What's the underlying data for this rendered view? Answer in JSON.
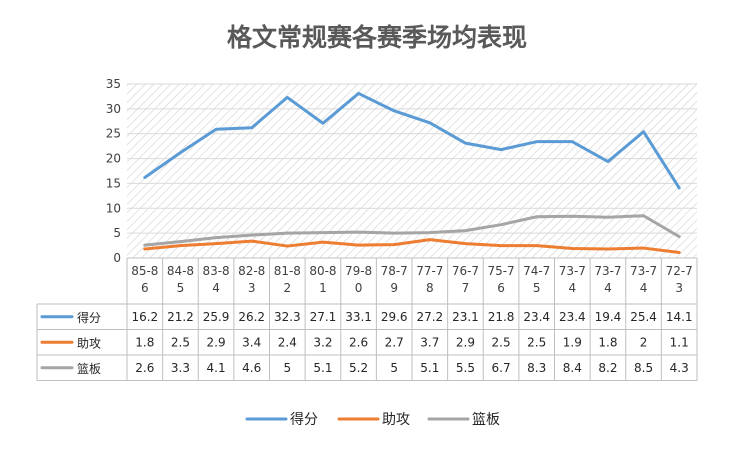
{
  "chart_data": {
    "type": "line",
    "title": "格文常规赛各赛季场均表现",
    "categories": [
      "85-86",
      "84-85",
      "83-84",
      "82-83",
      "81-82",
      "80-81",
      "79-80",
      "78-79",
      "77-78",
      "76-77",
      "75-76",
      "74-75",
      "73-74",
      "73-74",
      "73-74",
      "72-73"
    ],
    "category_lines": [
      [
        "85-8",
        "6"
      ],
      [
        "84-8",
        "5"
      ],
      [
        "83-8",
        "4"
      ],
      [
        "82-8",
        "3"
      ],
      [
        "81-8",
        "2"
      ],
      [
        "80-8",
        "1"
      ],
      [
        "79-8",
        "0"
      ],
      [
        "78-7",
        "9"
      ],
      [
        "77-7",
        "8"
      ],
      [
        "76-7",
        "7"
      ],
      [
        "75-7",
        "6"
      ],
      [
        "74-7",
        "5"
      ],
      [
        "73-7",
        "4"
      ],
      [
        "73-7",
        "4"
      ],
      [
        "73-7",
        "4"
      ],
      [
        "72-7",
        "3"
      ]
    ],
    "ylim": [
      0,
      35
    ],
    "yticks": [
      "0",
      "5",
      "10",
      "15",
      "20",
      "25",
      "30",
      "35"
    ],
    "grid": "diagonal hatch plot background",
    "legend_position": "bottom",
    "data_table": true,
    "series": [
      {
        "name": "得分",
        "color": "#5b9bd5",
        "values": [
          16.2,
          21.2,
          25.9,
          26.2,
          32.3,
          27.1,
          33.1,
          29.6,
          27.2,
          23.1,
          21.8,
          23.4,
          23.4,
          19.4,
          25.4,
          14.1
        ],
        "labels": [
          "16.2",
          "21.2",
          "25.9",
          "26.2",
          "32.3",
          "27.1",
          "33.1",
          "29.6",
          "27.2",
          "23.1",
          "21.8",
          "23.4",
          "23.4",
          "19.4",
          "25.4",
          "14.1"
        ]
      },
      {
        "name": "助攻",
        "color": "#ed7d31",
        "values": [
          1.8,
          2.5,
          2.9,
          3.4,
          2.4,
          3.2,
          2.6,
          2.7,
          3.7,
          2.9,
          2.5,
          2.5,
          1.9,
          1.8,
          2,
          1.1
        ],
        "labels": [
          "1.8",
          "2.5",
          "2.9",
          "3.4",
          "2.4",
          "3.2",
          "2.6",
          "2.7",
          "3.7",
          "2.9",
          "2.5",
          "2.5",
          "1.9",
          "1.8",
          "2",
          "1.1"
        ]
      },
      {
        "name": "篮板",
        "color": "#a5a5a5",
        "values": [
          2.6,
          3.3,
          4.1,
          4.6,
          5,
          5.1,
          5.2,
          5,
          5.1,
          5.5,
          6.7,
          8.3,
          8.4,
          8.2,
          8.5,
          4.3
        ],
        "labels": [
          "2.6",
          "3.3",
          "4.1",
          "4.6",
          "5",
          "5.1",
          "5.2",
          "5",
          "5.1",
          "5.5",
          "6.7",
          "8.3",
          "8.4",
          "8.2",
          "8.5",
          "4.3"
        ]
      }
    ]
  }
}
